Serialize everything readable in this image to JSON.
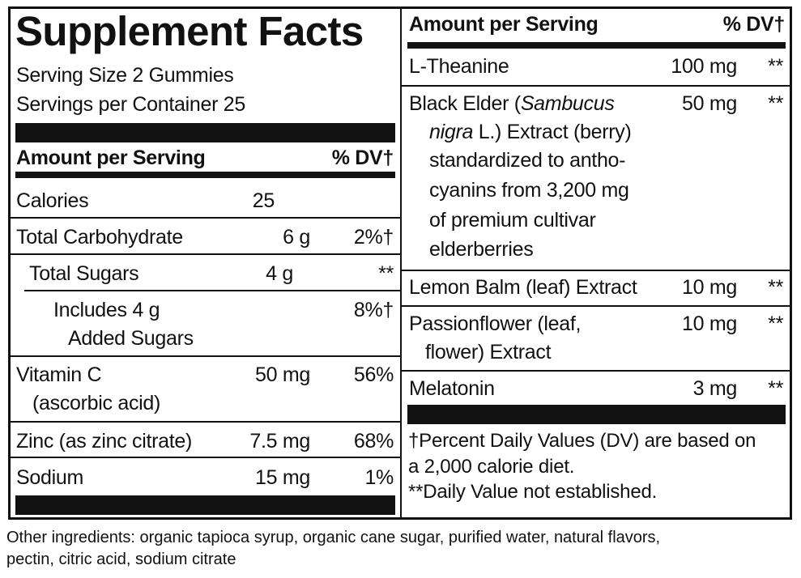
{
  "panel": {
    "title": "Supplement Facts",
    "serving_size": "Serving Size 2 Gummies",
    "servings_per_container": "Servings per Container 25",
    "left_header": {
      "amount": "Amount per Serving",
      "dv": "% DV†"
    },
    "left_rows": [
      {
        "name": "Calories",
        "amount": "25"
      },
      {
        "name": "Total Carbohydrate",
        "amount": "6 g",
        "dv": "2%†"
      },
      {
        "name": "Total Sugars",
        "amount": "4 g",
        "dv": "**"
      },
      {
        "name": [
          "Includes 4 g",
          "Added Sugars"
        ],
        "dv": "8%†"
      },
      {
        "name": [
          "Vitamin C",
          "(ascorbic acid)"
        ],
        "amount": "50 mg",
        "dv": "56%"
      },
      {
        "name": "Zinc (as zinc citrate)",
        "amount": "7.5 mg",
        "dv": "68%"
      },
      {
        "name": "Sodium",
        "amount": "15 mg",
        "dv": "1%"
      }
    ],
    "right_header": {
      "amount": "Amount per Serving",
      "dv": "% DV†"
    },
    "right_rows": [
      {
        "name": "L-Theanine",
        "amount": "100 mg",
        "dv": "**"
      },
      {
        "name_parts": [
          "Black Elder (",
          "Sambucus",
          "nigra",
          " L.) Extract (berry)",
          "standardized to antho-",
          "cyanins from 3,200 mg",
          "of premium cultivar",
          "elderberries"
        ],
        "amount": "50 mg",
        "dv": "**"
      },
      {
        "name": "Lemon Balm (leaf) Extract",
        "amount": "10 mg",
        "dv": "**"
      },
      {
        "name": [
          "Passionflower (leaf,",
          "flower) Extract"
        ],
        "amount": "10 mg",
        "dv": "**"
      },
      {
        "name": "Melatonin",
        "amount": "3 mg",
        "dv": "**"
      }
    ],
    "footnotes": [
      "†Percent Daily Values (DV) are based on",
      "a 2,000 calorie diet.",
      "**Daily Value not established."
    ]
  },
  "other_ingredients": [
    "Other ingredients: organic tapioca syrup, organic cane sugar, purified water, natural flavors,",
    "pectin, citric acid, sodium citrate"
  ]
}
